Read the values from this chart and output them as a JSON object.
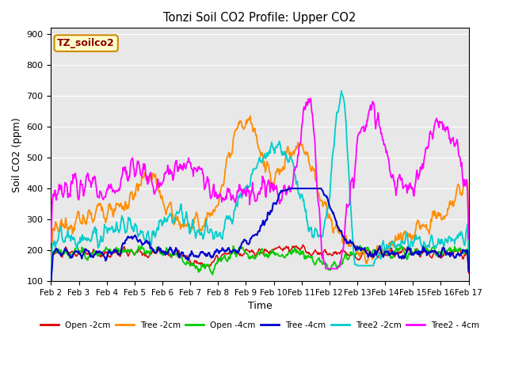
{
  "title": "Tonzi Soil CO2 Profile: Upper CO2",
  "xlabel": "Time",
  "ylabel": "Soil CO2 (ppm)",
  "ylim": [
    100,
    920
  ],
  "yticks": [
    100,
    200,
    300,
    400,
    500,
    600,
    700,
    800,
    900
  ],
  "xtick_labels": [
    "Feb 2",
    "Feb 3",
    "Feb 4",
    "Feb 5",
    "Feb 6",
    "Feb 7",
    "Feb 8",
    "Feb 9",
    "Feb 10",
    "Feb 11",
    "Feb 12",
    "Feb 13",
    "Feb 14",
    "Feb 15",
    "Feb 16",
    "Feb 17"
  ],
  "watermark": "TZ_soilco2",
  "colors": {
    "Open -2cm": "#dd0000",
    "Tree -2cm": "#ff8c00",
    "Open -4cm": "#00cc00",
    "Tree -4cm": "#0000cc",
    "Tree2 -2cm": "#00cccc",
    "Tree2 - 4cm": "#ff00ff"
  },
  "bg_color": "#e8e8e8",
  "legend_labels": [
    "Open -2cm",
    "Tree -2cm",
    "Open -4cm",
    "Tree -4cm",
    "Tree2 -2cm",
    "Tree2 - 4cm"
  ]
}
